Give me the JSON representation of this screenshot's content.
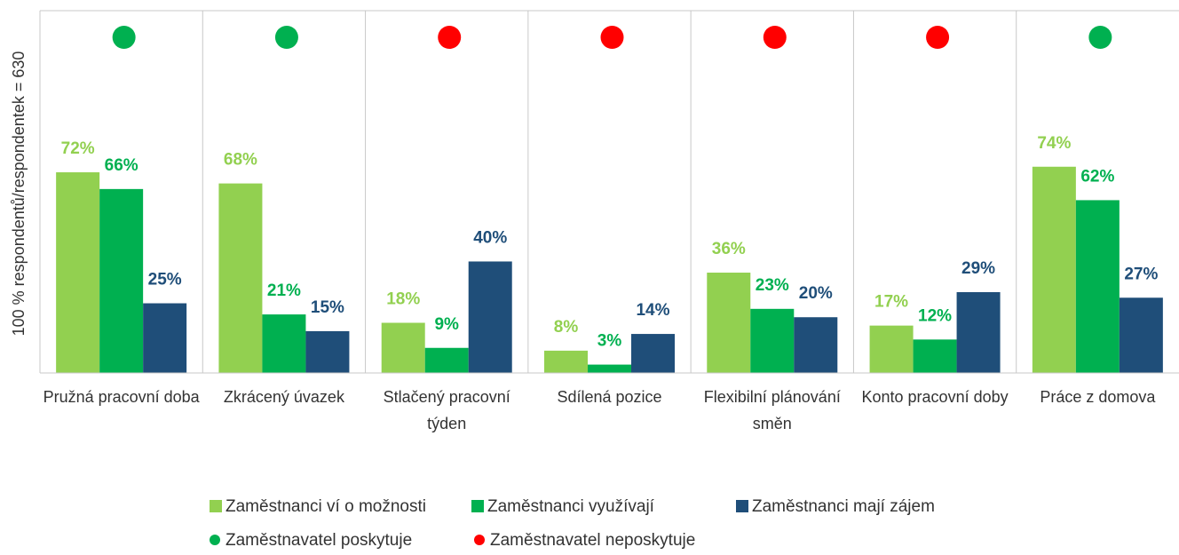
{
  "chart_data": {
    "type": "bar",
    "y_axis_label": "100 % respondentů/respondentek = 630",
    "categories": [
      "Pružná pracovní doba",
      "Zkrácený úvazek",
      "Stlačený pracovní týden",
      "Sdílená pozice",
      "Flexibilní plánování směn",
      "Konto pracovní doby",
      "Práce z domova"
    ],
    "series": [
      {
        "name": "Zaměstnanci ví o možnosti",
        "color": "#92d050",
        "values": [
          72,
          68,
          18,
          8,
          36,
          17,
          74
        ],
        "value_labels": [
          "72%",
          "68%",
          "18%",
          "8%",
          "36%",
          "17%",
          "74%"
        ]
      },
      {
        "name": "Zaměstnanci využívají",
        "color": "#00b050",
        "values": [
          66,
          21,
          9,
          3,
          23,
          12,
          62
        ],
        "value_labels": [
          "66%",
          "21%",
          "9%",
          "3%",
          "23%",
          "12%",
          "62%"
        ]
      },
      {
        "name": "Zaměstnanci mají zájem",
        "color": "#1f4e79",
        "values": [
          25,
          15,
          40,
          14,
          20,
          29,
          27
        ],
        "value_labels": [
          "25%",
          "15%",
          "40%",
          "14%",
          "20%",
          "29%",
          "27%"
        ]
      }
    ],
    "markers": [
      {
        "name": "Zaměstnavatel poskytuje",
        "color": "#00b050"
      },
      {
        "name": "Zaměstnavatel neposkytuje",
        "color": "#ff0000"
      }
    ],
    "employer_status": [
      0,
      0,
      1,
      1,
      1,
      1,
      0
    ],
    "ylim": [
      0,
      130
    ]
  }
}
